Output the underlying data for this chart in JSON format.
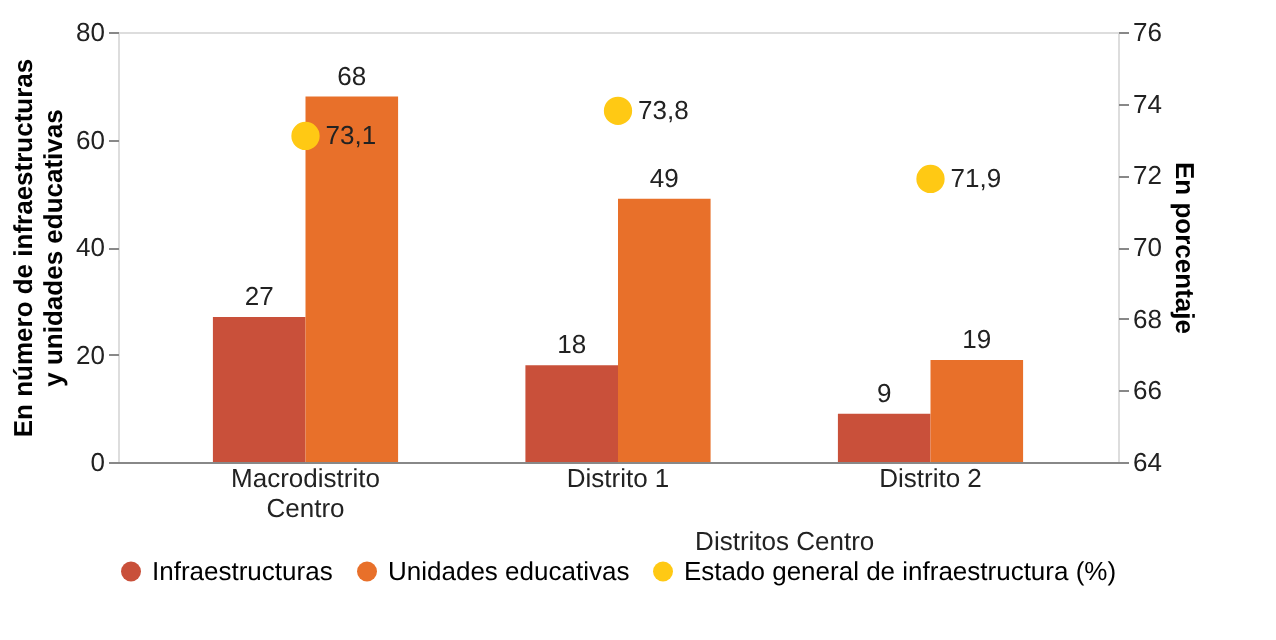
{
  "chart_data": {
    "type": "bar",
    "categories": [
      "Macrodistrito Centro",
      "Distrito 1",
      "Distrito 2"
    ],
    "series": [
      {
        "name": "Infraestructuras",
        "color": "#c9503a",
        "values": [
          27,
          18,
          9
        ]
      },
      {
        "name": "Unidades educativas",
        "color": "#e8702a",
        "values": [
          68,
          49,
          19
        ]
      },
      {
        "name": "Estado general de infraestructura (%)",
        "type": "scatter",
        "axis": "y2",
        "color": "#ffc914",
        "values": [
          73.1,
          73.8,
          71.9
        ],
        "value_labels": [
          "73,1",
          "73,8",
          "71,9"
        ]
      }
    ],
    "ylabel": "En número de infraestructuras y unidades educativas",
    "y2label": "En porcentaje",
    "ylim": [
      0,
      80
    ],
    "yticks": [
      0,
      20,
      40,
      60,
      80
    ],
    "y2lim": [
      64,
      76
    ],
    "y2ticks": [
      64,
      66,
      68,
      70,
      72,
      74,
      76
    ],
    "annotations": [
      "Distritos Centro"
    ],
    "data_labels": true,
    "grid": false,
    "legend": "bottom",
    "marker": "circle"
  }
}
